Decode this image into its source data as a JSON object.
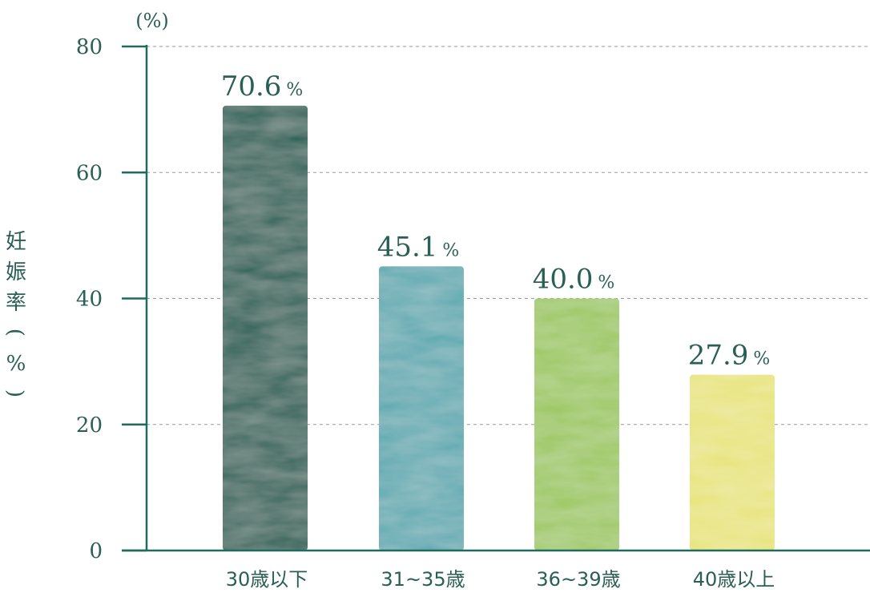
{
  "chart_data": {
    "type": "bar",
    "unit_label": "(%)",
    "ylabel": "妊娠率(%)",
    "ylim": [
      0,
      80
    ],
    "yticks": [
      0,
      20,
      40,
      60,
      80
    ],
    "grid": true,
    "categories": [
      "30歳以下",
      "31~35歳",
      "36~39歳",
      "40歳以上"
    ],
    "values": [
      70.6,
      45.1,
      40.0,
      27.9
    ],
    "value_labels": [
      "70.6",
      "45.1",
      "40.0",
      "27.9"
    ],
    "value_suffix": "%",
    "colors": [
      "#1f5e52",
      "#5aa9b0",
      "#9cc85e",
      "#e8e47a"
    ]
  }
}
